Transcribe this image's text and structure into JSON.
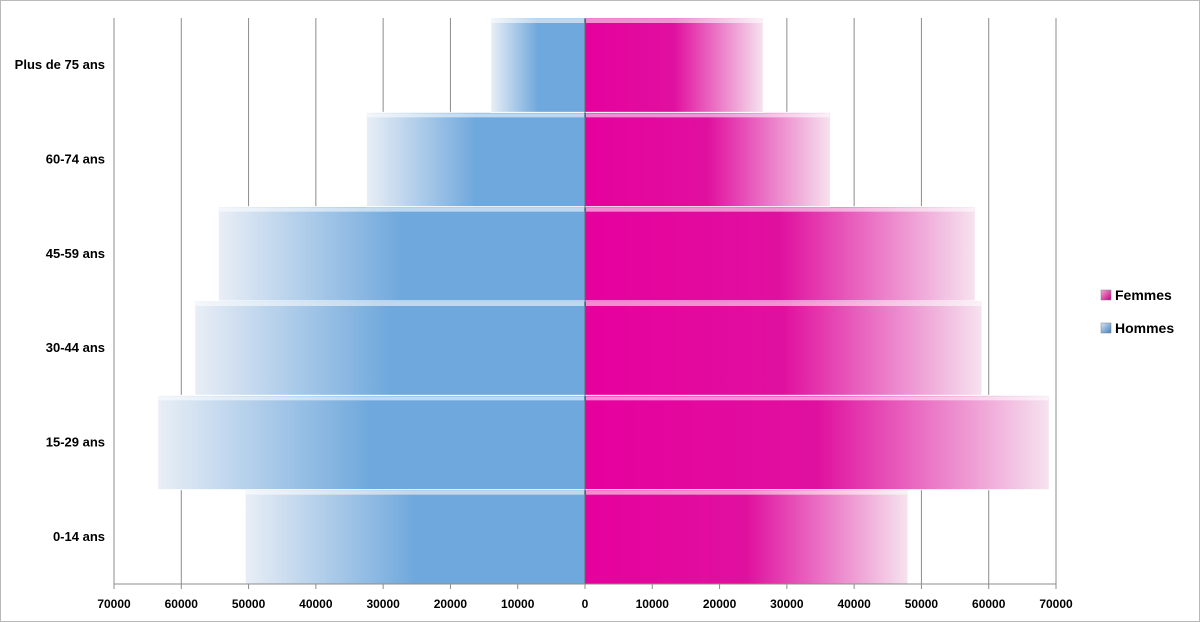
{
  "chart_data": {
    "type": "bar",
    "orientation": "horizontal",
    "chart_subtype": "population-pyramid",
    "categories": [
      "0-14 ans",
      "15-29 ans",
      "30-44 ans",
      "45-59 ans",
      "60-74 ans",
      "Plus de 75 ans"
    ],
    "series": [
      {
        "name": "Hommes",
        "side": "left",
        "color": "#6fa8dc",
        "values": [
          50500,
          63500,
          58000,
          54500,
          32500,
          14000
        ]
      },
      {
        "name": "Femmes",
        "side": "right",
        "color": "#e6009e",
        "values": [
          48000,
          69000,
          59000,
          58000,
          36500,
          26500
        ]
      }
    ],
    "xlim": [
      -70000,
      70000
    ],
    "x_ticks": [
      -70000,
      -60000,
      -50000,
      -40000,
      -30000,
      -20000,
      -10000,
      0,
      10000,
      20000,
      30000,
      40000,
      50000,
      60000,
      70000
    ],
    "x_tick_labels": [
      "70000",
      "60000",
      "50000",
      "40000",
      "30000",
      "20000",
      "10000",
      "0",
      "10000",
      "20000",
      "30000",
      "40000",
      "50000",
      "60000",
      "70000"
    ],
    "grid": "vertical",
    "legend": {
      "position": "right",
      "entries": [
        "Femmes",
        "Hommes"
      ]
    }
  }
}
